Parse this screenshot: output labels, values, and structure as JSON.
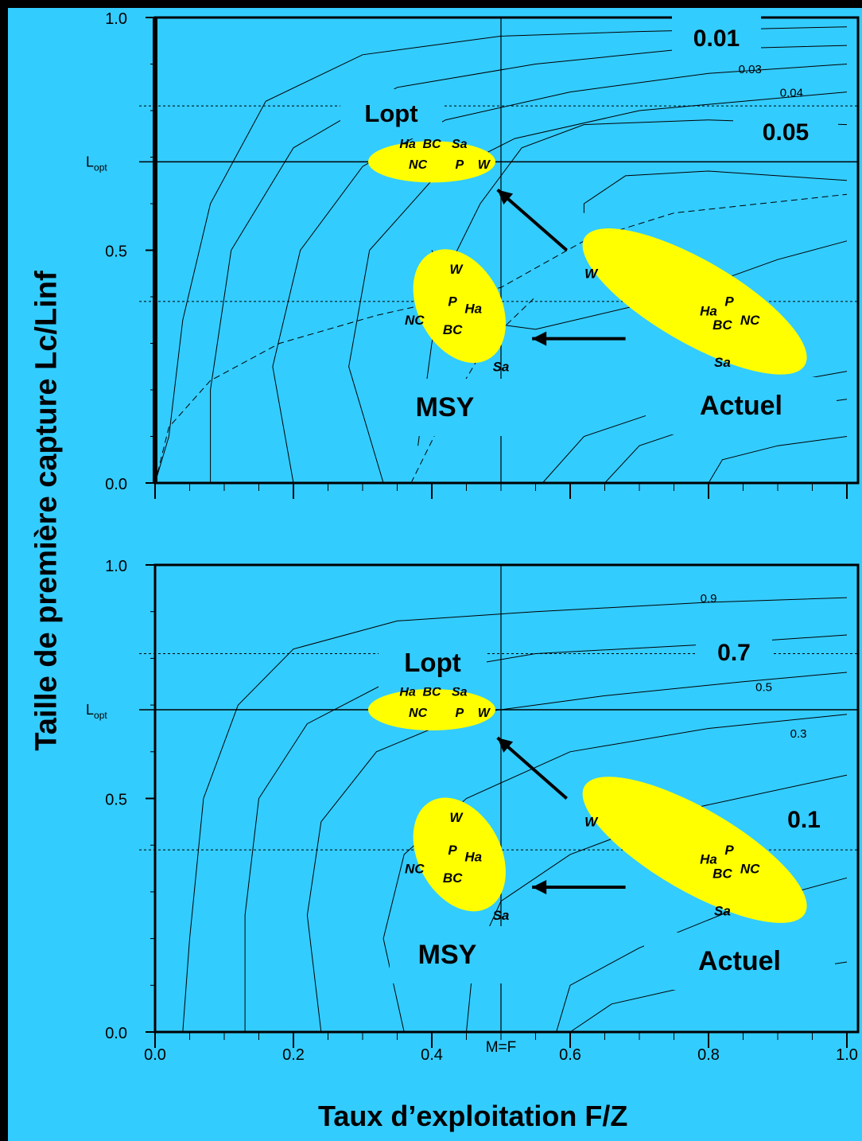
{
  "xaxis": {
    "title": "Taux d’exploitation F/Z",
    "ticks": [
      "0.0",
      "0.2",
      "0.4",
      "0.6",
      "0.8",
      "1.0"
    ],
    "mf_label": "M=F"
  },
  "yaxis": {
    "title": "Taille de première capture  Lc/Linf",
    "ticks": [
      "0.0",
      "0.5",
      "1.0"
    ],
    "lopt_label": "L",
    "lopt_sub": "opt"
  },
  "chart_data": [
    {
      "type": "line",
      "panel": "top",
      "xlabel": "Taux d’exploitation F/Z",
      "ylabel": "Taille de première capture  Lc/Linf",
      "xlim": [
        0,
        1
      ],
      "ylim": [
        0,
        1
      ],
      "lopt": 0.69,
      "mf": 0.5,
      "contour_labels": [
        "0.01",
        "0.03",
        "0.04",
        "0.05"
      ],
      "boxes": {
        "lopt": "Lopt",
        "msy": "MSY",
        "actuel": "Actuel"
      },
      "species_groups": {
        "lopt": [
          "Ha",
          "BC",
          "Sa",
          "NC",
          "P",
          "W"
        ],
        "msy": [
          "W",
          "P",
          "Ha",
          "NC",
          "BC",
          "Sa"
        ],
        "actuel": [
          "W",
          "Ha",
          "P",
          "BC",
          "NC",
          "Sa"
        ]
      }
    },
    {
      "type": "line",
      "panel": "bottom",
      "xlabel": "Taux d’exploitation F/Z",
      "ylabel": "Taille de première capture  Lc/Linf",
      "xlim": [
        0,
        1
      ],
      "ylim": [
        0,
        1
      ],
      "lopt": 0.69,
      "mf": 0.5,
      "contour_labels": [
        "0.9",
        "0.7",
        "0.5",
        "0.3",
        "0.1"
      ],
      "boxes": {
        "lopt": "Lopt",
        "msy": "MSY",
        "actuel": "Actuel"
      },
      "species_groups": {
        "lopt": [
          "Ha",
          "BC",
          "Sa",
          "NC",
          "P",
          "W"
        ],
        "msy": [
          "W",
          "P",
          "Ha",
          "NC",
          "BC",
          "Sa"
        ],
        "actuel": [
          "W",
          "Ha",
          "P",
          "BC",
          "NC",
          "Sa"
        ]
      }
    }
  ],
  "colors": {
    "background": "#33ccff",
    "ellipse": "#ffff00",
    "frame": "#000000"
  }
}
